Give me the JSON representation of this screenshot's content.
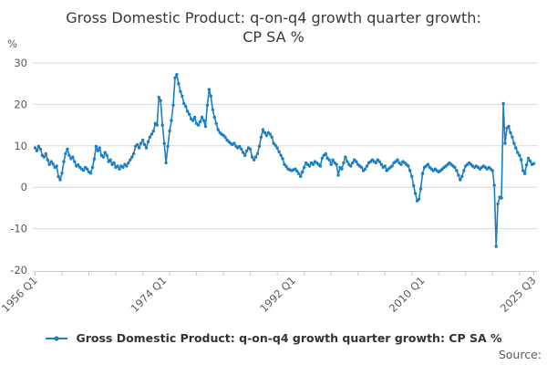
{
  "title": {
    "line1": "Gross Domestic Product: q-on-q4 growth quarter growth:",
    "line2": "CP SA %"
  },
  "y_axis": {
    "unit": "%",
    "ticks": [
      30,
      20,
      10,
      0,
      -10,
      -20
    ]
  },
  "x_axis": {
    "labels": [
      {
        "text": "1956 Q1",
        "q": 0
      },
      {
        "text": "1974 Q1",
        "q": 72
      },
      {
        "text": "1992 Q1",
        "q": 144
      },
      {
        "text": "2010 Q1",
        "q": 216
      },
      {
        "text": "2025 Q3",
        "q": 278
      }
    ]
  },
  "legend": {
    "label": "Gross Domestic Product: q-on-q4 growth quarter growth: CP SA %"
  },
  "source_label": "Source:",
  "colors": {
    "line": "#1d7ec2",
    "grid": "#d9d9d9",
    "axis": "#bfcddb",
    "title_text": "#383838",
    "tick_text": "#595959"
  },
  "chart_data": {
    "type": "line",
    "title": "Gross Domestic Product: q-on-q4 growth quarter growth: CP SA %",
    "series_name": "Gross Domestic Product: q-on-q4 growth quarter growth: CP SA %",
    "x_start": "1956 Q1",
    "x_end": "2025 Q3",
    "frequency": "quarterly",
    "ylabel": "%",
    "ylim": [
      -20,
      30
    ],
    "y_ticks": [
      30,
      20,
      10,
      0,
      -10,
      -20
    ],
    "grid": "horizontal",
    "legend_position": "bottom",
    "markers": true,
    "values": [
      9.5,
      8.8,
      9.9,
      9.2,
      7.7,
      7.3,
      8.1,
      6.6,
      5.5,
      6.2,
      5.6,
      4.8,
      5.1,
      2.6,
      1.8,
      3.4,
      6.2,
      8.1,
      9.2,
      7.7,
      6.9,
      7.3,
      6.2,
      5.1,
      5.4,
      4.8,
      4.4,
      4.1,
      4.8,
      4.4,
      3.7,
      3.4,
      4.8,
      6.8,
      9.9,
      8.8,
      9.5,
      7.7,
      7.3,
      8.4,
      7.7,
      6.2,
      6.6,
      5.5,
      5.9,
      4.8,
      5.1,
      4.4,
      5.1,
      4.8,
      5.5,
      5.1,
      5.9,
      6.6,
      7.3,
      8.1,
      9.9,
      10.3,
      9.5,
      10.6,
      11.4,
      10.3,
      9.5,
      11.0,
      12.1,
      12.8,
      13.6,
      15.4,
      15.0,
      21.7,
      20.9,
      15.0,
      10.6,
      5.9,
      9.9,
      13.6,
      16.1,
      19.8,
      26.4,
      27.2,
      25.0,
      23.1,
      22.0,
      20.2,
      19.5,
      18.3,
      17.6,
      16.5,
      16.1,
      16.9,
      15.4,
      15.0,
      15.8,
      16.9,
      16.1,
      14.7,
      19.8,
      23.6,
      22.0,
      18.7,
      16.9,
      15.4,
      13.9,
      13.2,
      12.8,
      12.5,
      12.1,
      11.4,
      11.0,
      10.6,
      10.3,
      10.6,
      9.9,
      9.5,
      9.9,
      9.2,
      8.4,
      7.7,
      8.8,
      9.5,
      9.2,
      7.3,
      6.6,
      7.3,
      8.1,
      9.9,
      12.1,
      13.9,
      13.2,
      12.5,
      13.2,
      12.8,
      12.1,
      10.6,
      10.1,
      9.5,
      8.6,
      7.7,
      6.9,
      5.5,
      5.0,
      4.4,
      4.2,
      4.0,
      4.2,
      4.4,
      3.9,
      3.3,
      2.6,
      3.7,
      4.8,
      5.9,
      5.5,
      5.1,
      5.9,
      5.5,
      6.2,
      5.9,
      5.5,
      5.1,
      7.0,
      7.7,
      8.1,
      7.0,
      6.6,
      5.5,
      6.6,
      5.9,
      5.5,
      2.9,
      4.8,
      4.4,
      5.9,
      7.3,
      6.2,
      5.5,
      5.1,
      5.9,
      6.6,
      6.2,
      5.5,
      5.1,
      4.8,
      4.0,
      4.4,
      5.1,
      5.9,
      6.2,
      6.6,
      6.2,
      5.9,
      6.6,
      6.2,
      5.5,
      4.8,
      5.1,
      4.0,
      4.4,
      4.8,
      5.1,
      5.9,
      6.2,
      6.6,
      5.9,
      5.5,
      6.2,
      5.9,
      5.5,
      5.1,
      4.0,
      2.6,
      0.4,
      -1.5,
      -3.3,
      -2.9,
      -0.4,
      3.3,
      4.8,
      5.1,
      5.5,
      4.8,
      4.4,
      4.0,
      4.4,
      4.0,
      3.7,
      4.0,
      4.4,
      4.8,
      5.1,
      5.5,
      5.9,
      5.5,
      5.1,
      4.8,
      4.0,
      2.9,
      1.8,
      2.6,
      4.0,
      5.1,
      5.5,
      5.9,
      5.5,
      5.1,
      4.8,
      5.1,
      4.8,
      4.4,
      4.8,
      5.1,
      4.8,
      4.4,
      4.8,
      4.4,
      4.0,
      0.5,
      -14.3,
      -4.0,
      -2.4,
      -2.6,
      20.2,
      10.6,
      14.3,
      14.7,
      13.2,
      12.1,
      10.6,
      9.5,
      8.4,
      7.7,
      6.6,
      4.0,
      3.3,
      5.4,
      7.0,
      6.3,
      5.5,
      5.7
    ]
  }
}
